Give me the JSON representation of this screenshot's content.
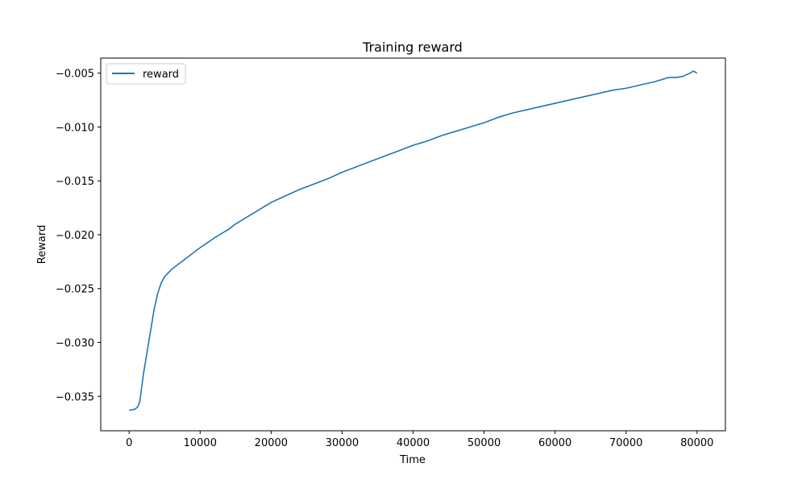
{
  "chart_data": {
    "type": "line",
    "title": "Training reward",
    "xlabel": "Time",
    "ylabel": "Reward",
    "xlim": [
      -4000,
      84000
    ],
    "ylim": [
      -0.0382,
      -0.0036
    ],
    "xticks": [
      0,
      10000,
      20000,
      30000,
      40000,
      50000,
      60000,
      70000,
      80000
    ],
    "xtick_labels": [
      "0",
      "10000",
      "20000",
      "30000",
      "40000",
      "50000",
      "60000",
      "70000",
      "80000"
    ],
    "yticks": [
      -0.035,
      -0.03,
      -0.025,
      -0.02,
      -0.015,
      -0.01,
      -0.005
    ],
    "ytick_labels": [
      "−0.035",
      "−0.030",
      "−0.025",
      "−0.020",
      "−0.015",
      "−0.010",
      "−0.005"
    ],
    "grid": false,
    "legend": {
      "position": "top-left",
      "entries": [
        "reward"
      ]
    },
    "series": [
      {
        "name": "reward",
        "color": "#1f77b4",
        "x": [
          0,
          800,
          1200,
          1500,
          1800,
          2000,
          2500,
          3000,
          3500,
          4000,
          4500,
          5000,
          6000,
          7000,
          8000,
          10000,
          12000,
          14000,
          15000,
          17000,
          19000,
          20000,
          22000,
          24000,
          26000,
          28000,
          30000,
          32000,
          34000,
          36000,
          38000,
          40000,
          42000,
          44000,
          46000,
          48000,
          50000,
          52000,
          54000,
          56000,
          58000,
          60000,
          62000,
          64000,
          66000,
          68000,
          70000,
          72000,
          74000,
          75000,
          76000,
          77000,
          78000,
          79000,
          79500,
          80000
        ],
        "y": [
          -0.0363,
          -0.0362,
          -0.036,
          -0.0355,
          -0.034,
          -0.033,
          -0.031,
          -0.029,
          -0.027,
          -0.0255,
          -0.0245,
          -0.0239,
          -0.0232,
          -0.0227,
          -0.0222,
          -0.0212,
          -0.0203,
          -0.0195,
          -0.019,
          -0.0182,
          -0.0174,
          -0.017,
          -0.0164,
          -0.0158,
          -0.0153,
          -0.0148,
          -0.0142,
          -0.0137,
          -0.0132,
          -0.0127,
          -0.0122,
          -0.0117,
          -0.0113,
          -0.0108,
          -0.0104,
          -0.01,
          -0.0096,
          -0.0091,
          -0.0087,
          -0.0084,
          -0.0081,
          -0.0078,
          -0.0075,
          -0.0072,
          -0.0069,
          -0.0066,
          -0.0064,
          -0.0061,
          -0.0058,
          -0.0056,
          -0.0054,
          -0.0054,
          -0.0053,
          -0.005,
          -0.0048,
          -0.005
        ]
      }
    ]
  }
}
